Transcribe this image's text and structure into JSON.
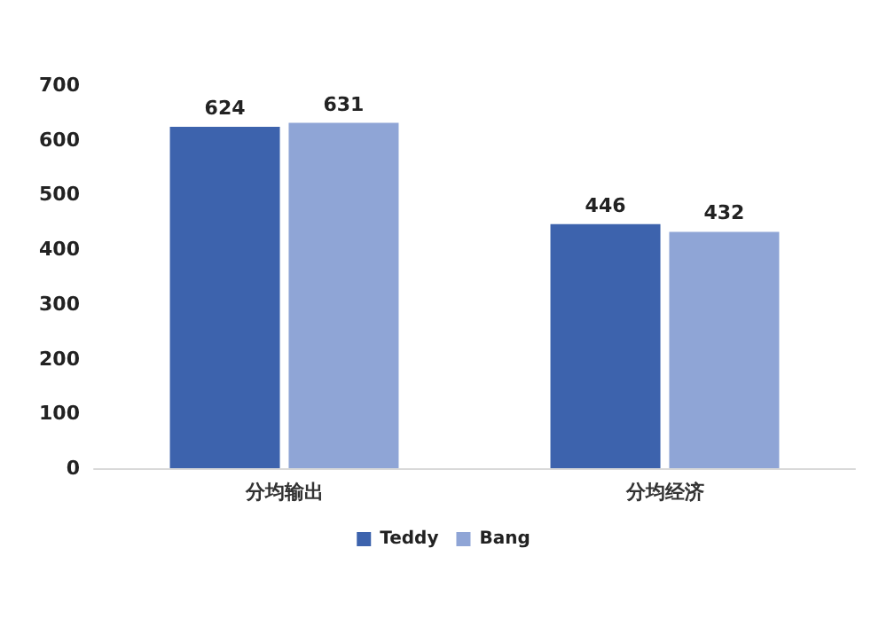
{
  "chart_data": {
    "type": "bar",
    "categories": [
      "分均输出",
      "分均经济"
    ],
    "series": [
      {
        "name": "Teddy",
        "color": "#3d63ad",
        "values": [
          624,
          446
        ]
      },
      {
        "name": "Bang",
        "color": "#8fa5d6",
        "values": [
          631,
          432
        ]
      }
    ],
    "ylim": [
      0,
      700
    ],
    "yticks": [
      0,
      100,
      200,
      300,
      400,
      500,
      600,
      700
    ],
    "grid": false,
    "legend": "bottom",
    "data_labels": true
  }
}
